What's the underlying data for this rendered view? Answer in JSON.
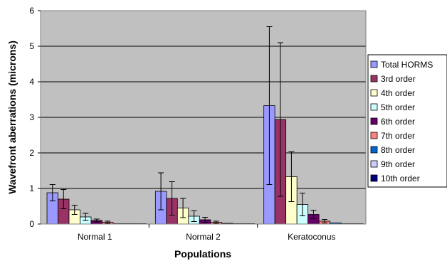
{
  "chart_data": {
    "type": "bar",
    "title": "",
    "xlabel": "Populations",
    "ylabel": "Wavefront aberrations (microns)",
    "ylim": [
      0,
      6
    ],
    "yticks": [
      "0",
      "1",
      "2",
      "3",
      "4",
      "5",
      "6"
    ],
    "grid": true,
    "legend_position": "right",
    "categories": [
      "Normal 1",
      "Normal 2",
      "Keratoconus"
    ],
    "series": [
      {
        "name": "Total HORMS",
        "color": "#9999ff",
        "values": [
          0.88,
          0.92,
          3.33
        ],
        "errors": [
          0.23,
          0.52,
          2.22
        ]
      },
      {
        "name": "3rd order",
        "color": "#993366",
        "values": [
          0.7,
          0.72,
          2.94
        ],
        "errors": [
          0.27,
          0.47,
          2.16
        ]
      },
      {
        "name": "4th order",
        "color": "#ffffcc",
        "values": [
          0.4,
          0.45,
          1.33
        ],
        "errors": [
          0.13,
          0.27,
          0.7
        ]
      },
      {
        "name": "5th order",
        "color": "#ccffff",
        "values": [
          0.2,
          0.22,
          0.55
        ],
        "errors": [
          0.1,
          0.15,
          0.32
        ]
      },
      {
        "name": "6th order",
        "color": "#660066",
        "values": [
          0.1,
          0.12,
          0.27
        ],
        "errors": [
          0.04,
          0.07,
          0.12
        ]
      },
      {
        "name": "7th order",
        "color": "#ff8080",
        "values": [
          0.05,
          0.05,
          0.08
        ],
        "errors": [
          0.03,
          0.03,
          0.05
        ]
      },
      {
        "name": "8th order",
        "color": "#0066cc",
        "values": [
          0.01,
          0.02,
          0.03
        ],
        "errors": [
          0,
          0,
          0
        ]
      },
      {
        "name": "9th order",
        "color": "#ccccff",
        "values": [
          0.01,
          0.01,
          0.01
        ],
        "errors": [
          0,
          0,
          0
        ]
      },
      {
        "name": "10th order",
        "color": "#000080",
        "values": [
          0.005,
          0.005,
          0.005
        ],
        "errors": [
          0,
          0,
          0
        ]
      }
    ],
    "colors": {
      "plot_background": "#c0c0c0",
      "gridline": "#000000"
    }
  }
}
